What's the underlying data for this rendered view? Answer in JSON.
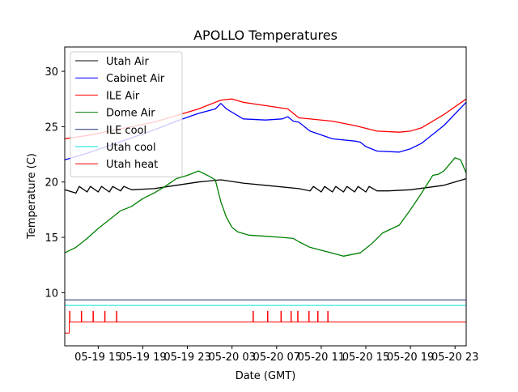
{
  "chart_data": {
    "type": "line",
    "title": "APOLLO Temperatures",
    "xlabel": "Date (GMT)",
    "ylabel": "Temperature (C)",
    "x_unit": "hours since 05-19 00:00 GMT",
    "xlim": [
      12,
      48
    ],
    "ylim": [
      5.2,
      32.2
    ],
    "grid": false,
    "legend_position": "top-left",
    "x_ticks": [
      {
        "value": 15,
        "label": "05-19 15"
      },
      {
        "value": 19,
        "label": "05-19 19"
      },
      {
        "value": 23,
        "label": "05-19 23"
      },
      {
        "value": 27,
        "label": "05-20 03"
      },
      {
        "value": 31,
        "label": "05-20 07"
      },
      {
        "value": 35,
        "label": "05-20 11"
      },
      {
        "value": 39,
        "label": "05-20 15"
      },
      {
        "value": 43,
        "label": "05-20 19"
      },
      {
        "value": 47,
        "label": "05-20 23"
      }
    ],
    "y_ticks": [
      {
        "value": 10,
        "label": "10"
      },
      {
        "value": 15,
        "label": "15"
      },
      {
        "value": 20,
        "label": "20"
      },
      {
        "value": 25,
        "label": "25"
      },
      {
        "value": 30,
        "label": "30"
      }
    ],
    "series": [
      {
        "name": "Utah Air",
        "color": "#000000",
        "x": [
          12,
          13,
          13.3,
          14,
          14.3,
          15,
          15.3,
          16,
          16.3,
          17,
          17.3,
          18,
          20,
          22,
          24,
          26,
          28,
          30,
          33,
          34,
          34.3,
          35,
          35.3,
          36,
          36.3,
          37,
          37.3,
          38,
          38.3,
          39,
          39.3,
          40,
          41,
          43,
          46,
          48
        ],
        "values": [
          19.3,
          19.0,
          19.6,
          19.1,
          19.6,
          19.1,
          19.6,
          19.1,
          19.6,
          19.2,
          19.6,
          19.3,
          19.4,
          19.7,
          20.0,
          20.2,
          19.9,
          19.7,
          19.4,
          19.2,
          19.6,
          19.1,
          19.6,
          19.1,
          19.6,
          19.1,
          19.6,
          19.1,
          19.6,
          19.1,
          19.6,
          19.2,
          19.2,
          19.3,
          19.7,
          20.3
        ]
      },
      {
        "name": "Cabinet Air",
        "color": "#0000ff",
        "x": [
          12,
          14,
          16,
          18,
          20,
          22,
          24,
          25.5,
          26,
          26.5,
          27.5,
          28,
          30,
          31.5,
          32,
          32.5,
          33,
          34,
          36,
          38,
          38.5,
          39,
          40,
          42,
          43,
          44,
          46,
          48
        ],
        "values": [
          22.0,
          22.6,
          23.3,
          24.0,
          24.7,
          25.5,
          26.2,
          26.6,
          27.1,
          26.6,
          26.0,
          25.7,
          25.6,
          25.7,
          25.9,
          25.5,
          25.4,
          24.6,
          23.9,
          23.7,
          23.6,
          23.2,
          22.8,
          22.7,
          23.0,
          23.5,
          25.1,
          27.2
        ]
      },
      {
        "name": "ILE Air",
        "color": "#ff0000",
        "x": [
          12,
          14,
          16,
          18,
          20,
          22,
          24,
          26,
          27,
          28,
          30,
          32,
          33,
          36,
          38,
          40,
          42,
          43,
          44,
          46,
          48
        ],
        "values": [
          23.9,
          24.2,
          24.6,
          25.0,
          25.4,
          26.0,
          26.6,
          27.4,
          27.5,
          27.2,
          26.9,
          26.6,
          25.8,
          25.5,
          25.1,
          24.6,
          24.5,
          24.6,
          24.9,
          26.1,
          27.5
        ]
      },
      {
        "name": "Dome Air",
        "color": "#008000",
        "x": [
          12,
          13,
          14,
          15,
          16,
          17,
          18,
          19,
          20,
          21,
          22,
          23,
          24,
          25,
          25.5,
          26,
          26.5,
          27,
          27.5,
          28.5,
          30,
          31.5,
          32.5,
          33,
          34,
          35.5,
          37,
          38.5,
          39.5,
          40.5,
          42,
          43,
          44,
          45,
          45.5,
          46,
          46.5,
          47,
          47.5,
          48
        ],
        "values": [
          13.6,
          14.1,
          14.9,
          15.8,
          16.6,
          17.4,
          17.8,
          18.5,
          19.0,
          19.6,
          20.3,
          20.6,
          21.0,
          20.5,
          20.2,
          18.2,
          16.8,
          15.9,
          15.5,
          15.2,
          15.1,
          15.0,
          14.9,
          14.6,
          14.1,
          13.7,
          13.3,
          13.6,
          14.4,
          15.4,
          16.1,
          17.5,
          19.0,
          20.6,
          20.7,
          21.0,
          21.6,
          22.2,
          22.0,
          20.8
        ]
      },
      {
        "name": "ILE cool",
        "color": "#1f2f6f",
        "x": [
          12,
          48
        ],
        "values": [
          9.35,
          9.35
        ]
      },
      {
        "name": "Utah cool",
        "color": "#00e5e5",
        "x": [
          12,
          48
        ],
        "values": [
          8.85,
          8.85
        ]
      },
      {
        "name": "Utah heat",
        "color": "#ff0000",
        "baseline": 7.35,
        "off_value": 6.35,
        "pulse_value": 8.35,
        "off_until": 12.4,
        "pulse_x": [
          12.45,
          13.5,
          14.55,
          15.6,
          16.65,
          28.9,
          30.2,
          31.4,
          32.3,
          32.9,
          33.9,
          34.7,
          35.6
        ]
      }
    ]
  }
}
